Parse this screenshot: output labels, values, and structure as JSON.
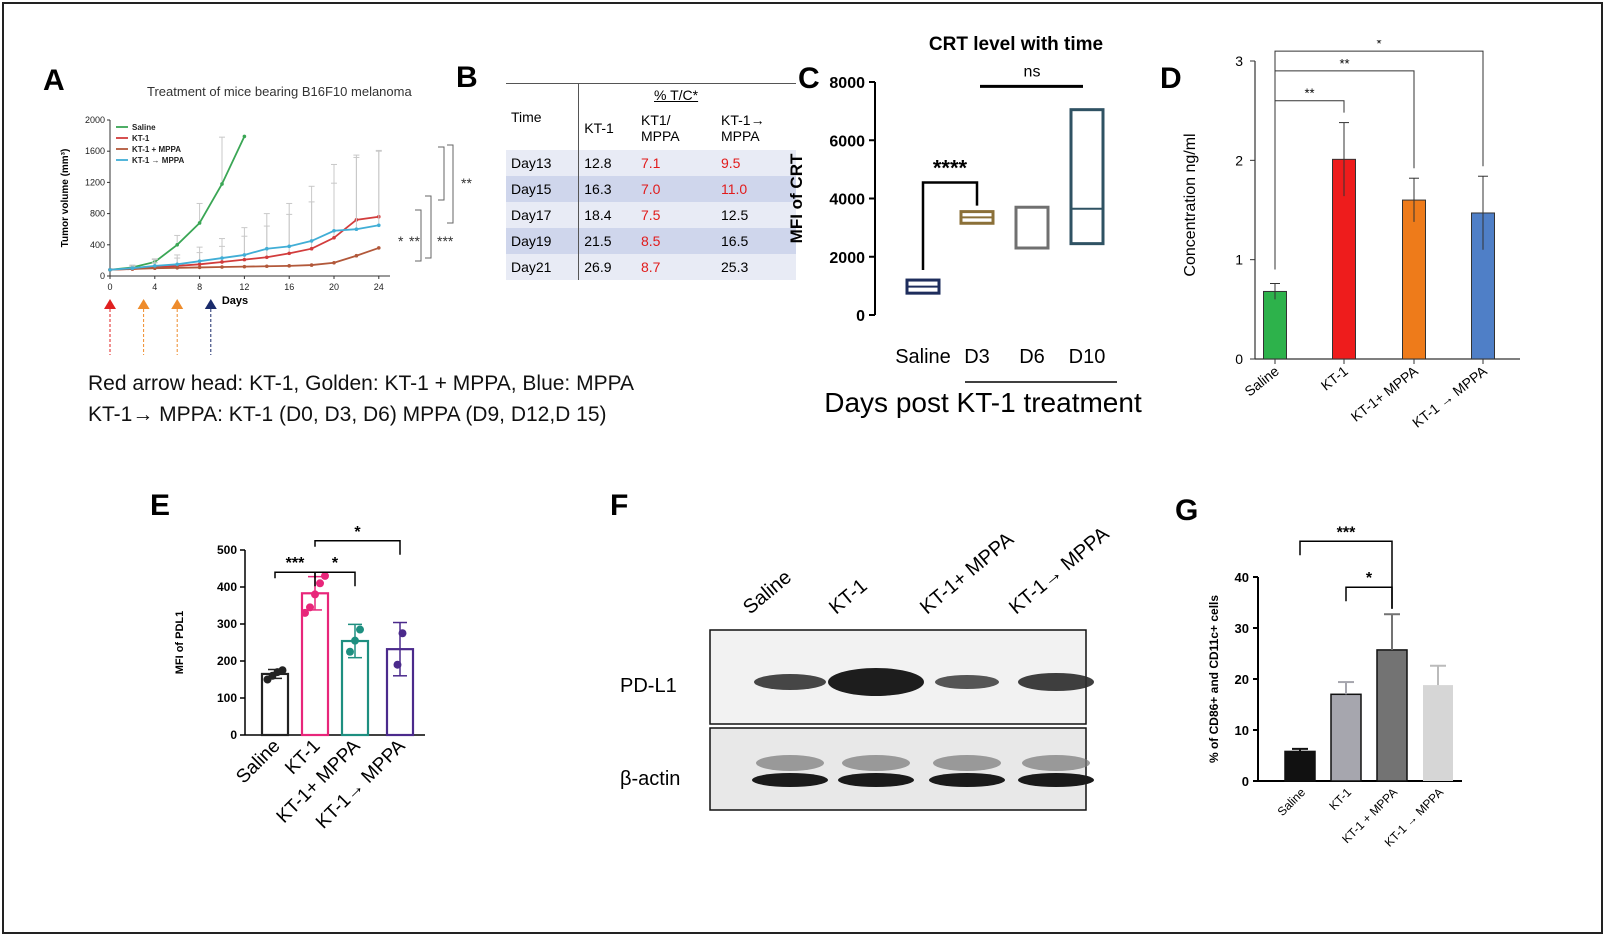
{
  "panels": {
    "A": {
      "label": "A",
      "title": "Treatment of mice bearing B16F10 melanoma",
      "note_line1": "Red arrow head: KT-1, Golden: KT-1 + MPPA, Blue: MPPA",
      "note_line2": "KT-1→ MPPA: KT-1 (D0, D3, D6) MPPA (D9, D12,D 15)",
      "sig": [
        "**",
        "*",
        "**",
        "***"
      ]
    },
    "B": {
      "label": "B"
    },
    "C": {
      "label": "C",
      "sig_main": "****",
      "sig_ns": "ns",
      "xaxis_caption": "Days post KT-1 treatment"
    },
    "D": {
      "label": "D",
      "sig": [
        "**",
        "**",
        "*"
      ]
    },
    "E": {
      "label": "E",
      "sig": [
        "***",
        "*",
        "*"
      ]
    },
    "F": {
      "label": "F",
      "lanes": [
        "Saline",
        "KT-1",
        "KT-1+ MPPA",
        "KT-1→ MPPA"
      ],
      "row_labels": [
        "PD-L1",
        "β-actin"
      ]
    },
    "G": {
      "label": "G",
      "sig": [
        "***",
        "*"
      ]
    }
  },
  "chart_data": [
    {
      "panel": "A",
      "type": "line",
      "title": "Treatment of mice bearing B16F10 melanoma",
      "xlabel": "Days",
      "ylabel": "Tumor volume (mm³)",
      "xlim": [
        0,
        25
      ],
      "ylim": [
        0,
        2000
      ],
      "xticks": [
        "0",
        "4",
        "8",
        "12",
        "16",
        "20",
        "24"
      ],
      "yticks": [
        "0",
        "400",
        "800",
        "1200",
        "1600",
        "2000"
      ],
      "legend_position": "top-left",
      "series": [
        {
          "name": "Saline",
          "color": "#3aa655",
          "x": [
            0,
            2,
            4,
            6,
            8,
            10,
            12
          ],
          "y": [
            80,
            110,
            180,
            400,
            680,
            1180,
            1790
          ],
          "err": [
            0,
            20,
            40,
            120,
            250,
            600,
            0
          ]
        },
        {
          "name": "KT-1",
          "color": "#d23c3c",
          "x": [
            0,
            2,
            4,
            6,
            8,
            10,
            12,
            14,
            16,
            18,
            20,
            22,
            24
          ],
          "y": [
            80,
            90,
            110,
            130,
            150,
            180,
            210,
            240,
            290,
            350,
            490,
            720,
            760
          ],
          "err": [
            0,
            30,
            60,
            100,
            150,
            200,
            300,
            400,
            500,
            600,
            700,
            800,
            850
          ]
        },
        {
          "name": "KT-1 + MPPA",
          "color": "#b2583a",
          "x": [
            0,
            2,
            4,
            6,
            8,
            10,
            12,
            14,
            16,
            18,
            20,
            22,
            24
          ],
          "y": [
            80,
            90,
            100,
            105,
            110,
            115,
            120,
            125,
            130,
            140,
            170,
            260,
            360
          ],
          "err": [
            0,
            0,
            0,
            0,
            0,
            0,
            0,
            0,
            0,
            0,
            0,
            0,
            0
          ]
        },
        {
          "name": "KT-1 → MPPA",
          "color": "#41aed6",
          "x": [
            0,
            2,
            4,
            6,
            8,
            10,
            12,
            14,
            16,
            18,
            20,
            22,
            24
          ],
          "y": [
            80,
            100,
            130,
            150,
            190,
            230,
            270,
            350,
            380,
            450,
            580,
            600,
            650
          ],
          "err": [
            0,
            40,
            80,
            120,
            180,
            250,
            350,
            450,
            550,
            700,
            850,
            950,
            950
          ]
        }
      ],
      "arrows": [
        {
          "day": 0,
          "color": "#e02020"
        },
        {
          "day": 3,
          "color": "#ee8c2c"
        },
        {
          "day": 6,
          "color": "#ee8c2c"
        },
        {
          "day": 9,
          "color": "#1a2b6b"
        }
      ]
    },
    {
      "panel": "B",
      "type": "table",
      "group_header": "% T/C*",
      "columns": [
        "Time",
        "KT-1",
        "KT1/ MPPA",
        "KT-1→ MPPA"
      ],
      "rows": [
        [
          "Day13",
          "12.8",
          "7.1",
          "9.5"
        ],
        [
          "Day15",
          "16.3",
          "7.0",
          "11.0"
        ],
        [
          "Day17",
          "18.4",
          "7.5",
          "12.5"
        ],
        [
          "Day19",
          "21.5",
          "8.5",
          "16.5"
        ],
        [
          "Day21",
          "26.9",
          "8.7",
          "25.3"
        ]
      ],
      "highlight_color": "#e11b1b"
    },
    {
      "panel": "C",
      "type": "bar",
      "title": "CRT level with time",
      "ylabel": "MFI of CRT",
      "xlabel": "Days post KT-1 treatment",
      "ylim": [
        0,
        8000
      ],
      "yticks": [
        "0",
        "2000",
        "4000",
        "6000",
        "8000"
      ],
      "categories": [
        "Saline",
        "D3",
        "D6",
        "D10"
      ],
      "boxes": [
        {
          "min": 750,
          "max": 1200,
          "median": 975,
          "color": "#1e2d5c"
        },
        {
          "min": 3150,
          "max": 3550,
          "median": 3350,
          "color": "#8b7038"
        },
        {
          "min": 2300,
          "max": 3700,
          "median": null,
          "color": "#707070"
        },
        {
          "min": 2450,
          "max": 7050,
          "median": 3650,
          "color": "#2f5263"
        }
      ]
    },
    {
      "panel": "D",
      "type": "bar",
      "ylabel": "Concentration ng/ml",
      "ylim": [
        0,
        3
      ],
      "yticks": [
        "0",
        "1",
        "2",
        "3"
      ],
      "categories": [
        "Saline",
        "KT-1",
        "KT-1+ MPPA",
        "KT-1 → MPPA"
      ],
      "values": [
        0.68,
        2.01,
        1.6,
        1.47
      ],
      "errors": [
        0.08,
        0.37,
        0.22,
        0.37
      ],
      "colors": [
        "#2db24b",
        "#ee1c1c",
        "#ee7b1a",
        "#4f7fc7"
      ]
    },
    {
      "panel": "E",
      "type": "bar",
      "ylabel": "MFI of PDL1",
      "ylim": [
        0,
        500
      ],
      "yticks": [
        "0",
        "100",
        "200",
        "300",
        "400",
        "500"
      ],
      "categories": [
        "Saline",
        "KT-1",
        "KT-1+ MPPA",
        "KT-1→ MPPA"
      ],
      "values": [
        165,
        383,
        254,
        232
      ],
      "errors": [
        12,
        45,
        45,
        72
      ],
      "colors": [
        "#222222",
        "#e8267a",
        "#1e8f80",
        "#4b2a8c"
      ],
      "points": [
        [
          150,
          160,
          170,
          175
        ],
        [
          330,
          345,
          380,
          410,
          430
        ],
        [
          225,
          255,
          285
        ],
        [
          190,
          275
        ]
      ]
    },
    {
      "panel": "G",
      "type": "bar",
      "ylabel": "% of CD86+ and CD11c+ cells",
      "ylim": [
        0,
        40
      ],
      "yticks": [
        "0",
        "10",
        "20",
        "30",
        "40"
      ],
      "categories": [
        "Saline",
        "KT-1",
        "KT-1 + MPPA",
        "KT-1 → MPPA"
      ],
      "values": [
        5.8,
        17,
        25.7,
        18.8
      ],
      "errors": [
        0.5,
        2.4,
        7,
        3.8
      ],
      "colors": [
        "#111111",
        "#a6a6ae",
        "#737373",
        "#d6d6d6"
      ]
    }
  ]
}
